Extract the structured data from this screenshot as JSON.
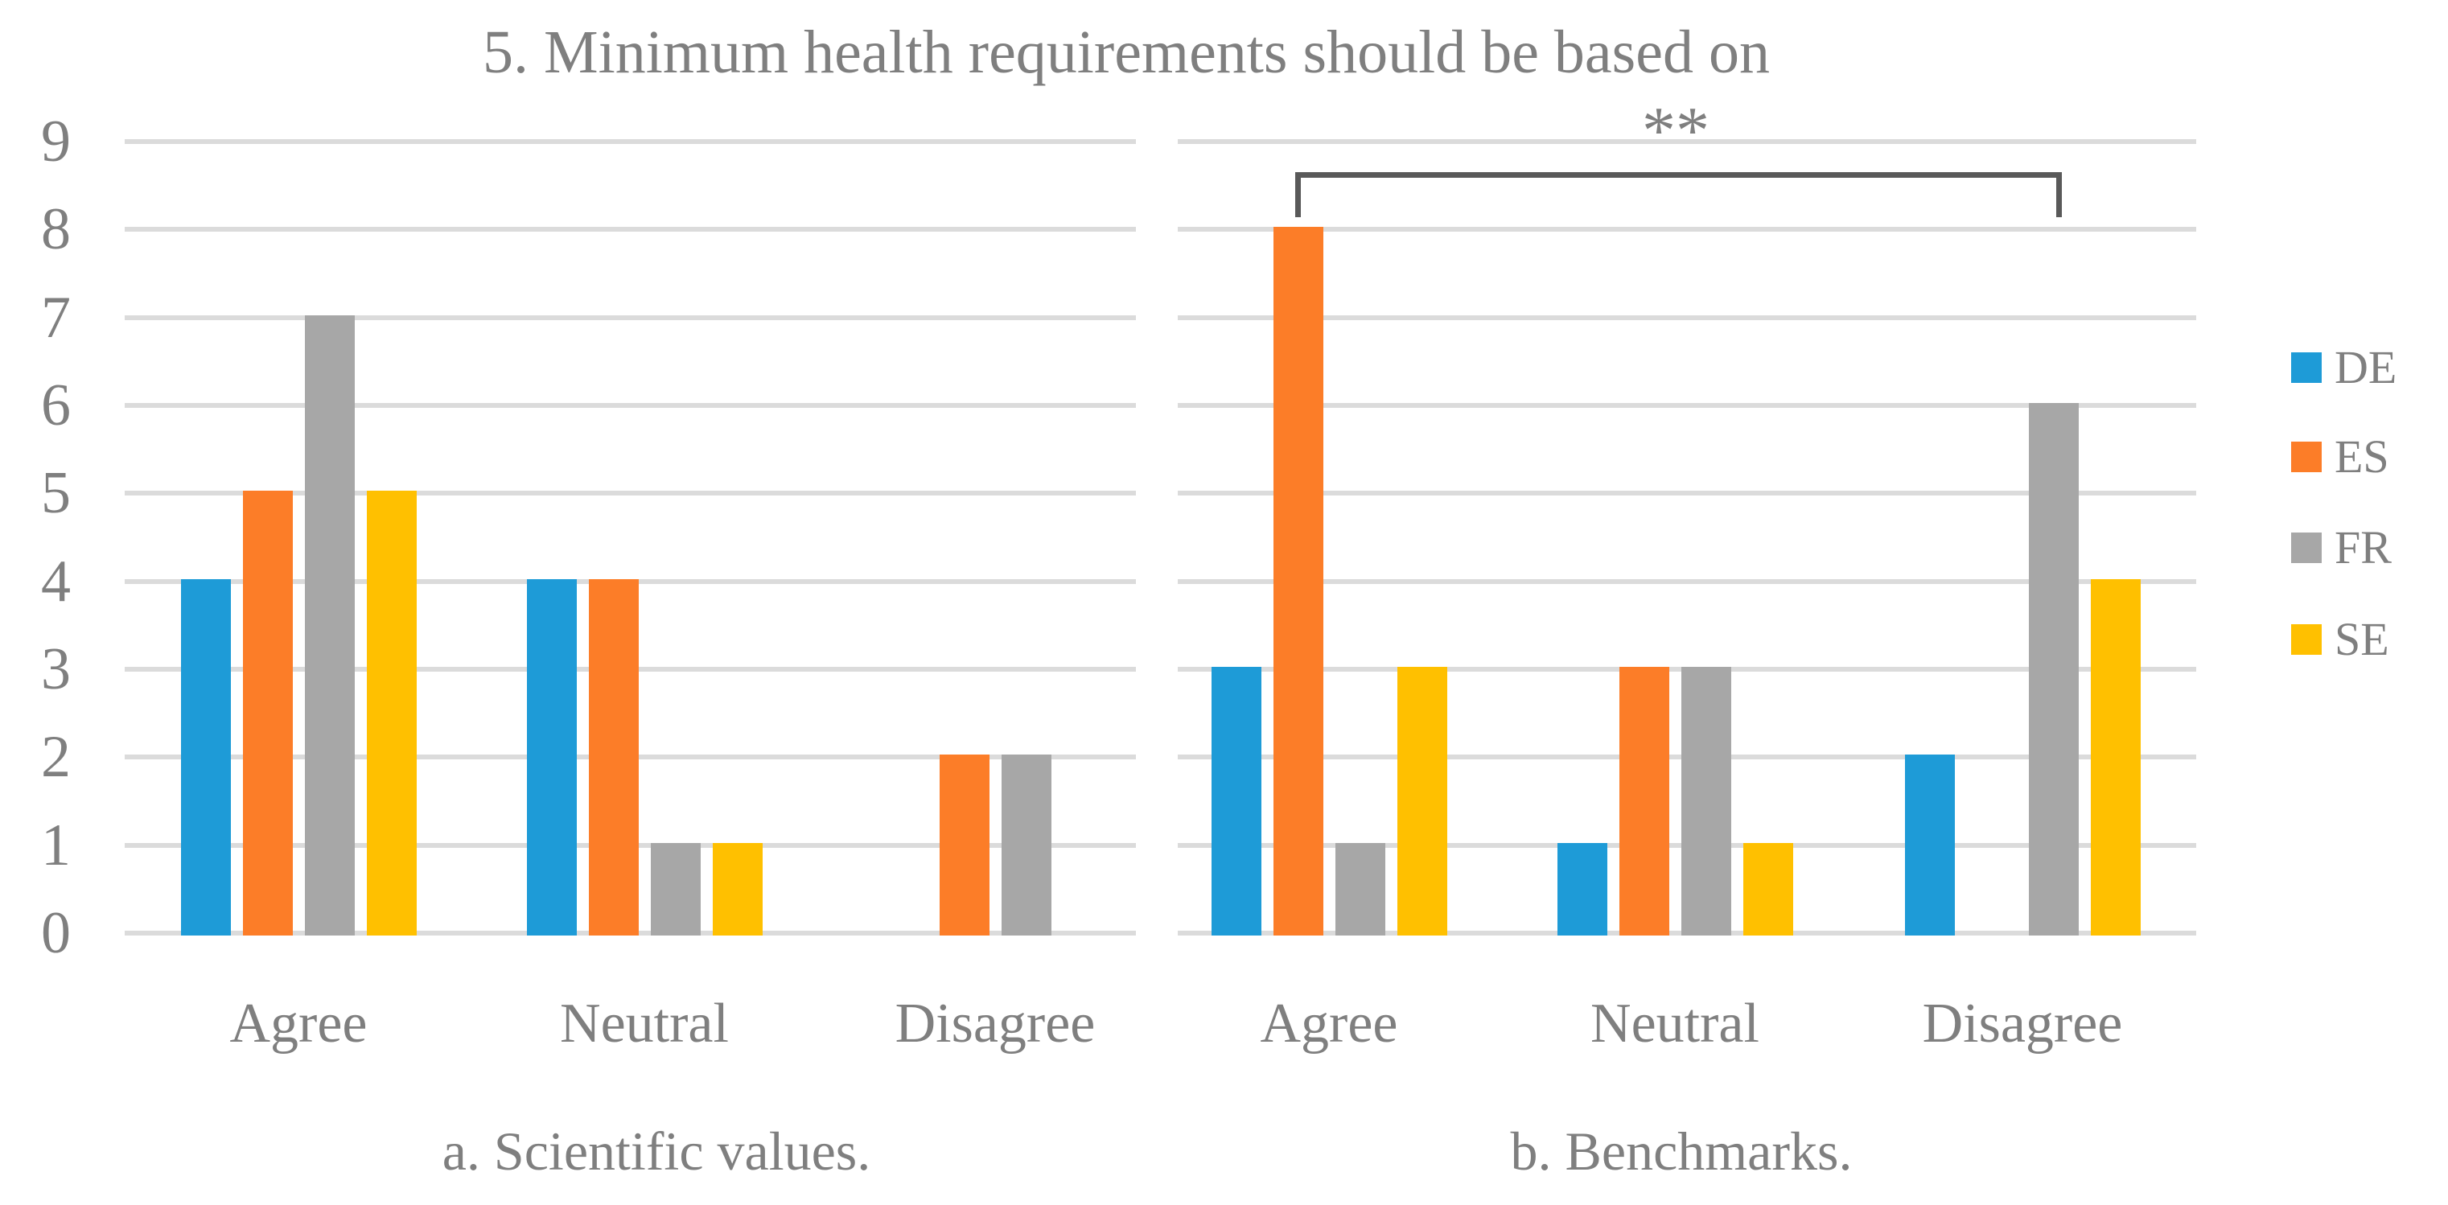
{
  "title": "5. Minimum health requirements should be based on",
  "y_axis": {
    "min": 0,
    "max": 9,
    "ticks": [
      9,
      8,
      7,
      6,
      5,
      4,
      3,
      2,
      1,
      0
    ]
  },
  "legend": [
    {
      "name": "DE",
      "color": "#1E9BD7"
    },
    {
      "name": "ES",
      "color": "#FC7D28"
    },
    {
      "name": "FR",
      "color": "#A7A7A7"
    },
    {
      "name": "SE",
      "color": "#FFC000"
    }
  ],
  "colors": {
    "gridline": "#DBDBDB",
    "text": "#7F7F7F",
    "bracket": "#595959",
    "background": "#FFFFFF"
  },
  "chart_data": [
    {
      "type": "bar",
      "caption": "a. Scientific values.",
      "categories": [
        "Agree",
        "Neutral",
        "Disagree"
      ],
      "series": [
        {
          "name": "DE",
          "values": [
            4,
            4,
            0
          ]
        },
        {
          "name": "ES",
          "values": [
            5,
            4,
            2
          ]
        },
        {
          "name": "FR",
          "values": [
            7,
            1,
            2
          ]
        },
        {
          "name": "SE",
          "values": [
            5,
            1,
            0
          ]
        }
      ],
      "ylim": [
        0,
        9
      ],
      "grid": true,
      "legend_position": "right"
    },
    {
      "type": "bar",
      "caption": "b. Benchmarks.",
      "categories": [
        "Agree",
        "Neutral",
        "Disagree"
      ],
      "series": [
        {
          "name": "DE",
          "values": [
            3,
            1,
            2
          ]
        },
        {
          "name": "ES",
          "values": [
            8,
            3,
            0
          ]
        },
        {
          "name": "FR",
          "values": [
            1,
            3,
            6
          ]
        },
        {
          "name": "SE",
          "values": [
            3,
            1,
            4
          ]
        }
      ],
      "ylim": [
        0,
        9
      ],
      "grid": true,
      "legend_position": "right",
      "annotation": {
        "label": "**",
        "from": {
          "category": "Agree",
          "series": "ES"
        },
        "to": {
          "category": "Disagree",
          "series": "FR"
        }
      }
    }
  ]
}
